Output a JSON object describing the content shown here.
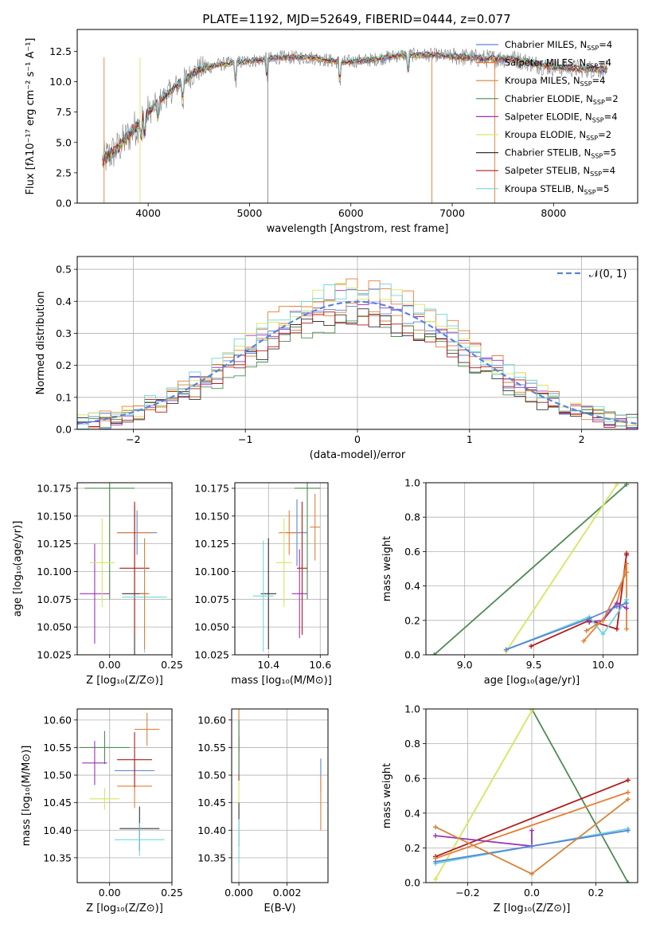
{
  "title": "PLATE=1192, MJD=52649, FIBERID=0444, z=0.077",
  "models": [
    {
      "label": "Chabrier MILES",
      "nssp": "4",
      "color": "#5b84d8"
    },
    {
      "label": "Salpeter MILES",
      "nssp": "4",
      "color": "#e67e35"
    },
    {
      "label": "Kroupa MILES",
      "nssp": "4",
      "color": "#d5833a"
    },
    {
      "label": "Chabrier ELODIE",
      "nssp": "2",
      "color": "#4e8a52"
    },
    {
      "label": "Salpeter ELODIE",
      "nssp": "4",
      "color": "#9b32b4"
    },
    {
      "label": "Kroupa ELODIE",
      "nssp": "2",
      "color": "#d4e65f"
    },
    {
      "label": "Chabrier STELIB",
      "nssp": "5",
      "color": "#333333"
    },
    {
      "label": "Salpeter STELIB",
      "nssp": "4",
      "color": "#b01c1c"
    },
    {
      "label": "Kroupa STELIB",
      "nssp": "5",
      "color": "#6fd6dc"
    }
  ],
  "chart_data": [
    {
      "id": "spectrum",
      "type": "line",
      "xlabel": "wavelength [Angstrom, rest frame]",
      "ylabel": "Flux [fλ10⁻¹⁷ erg cm⁻² s⁻¹ A⁻¹]",
      "xlim": [
        3300,
        8830
      ],
      "ylim": [
        0,
        14.3
      ],
      "xticks": [
        "4000",
        "5000",
        "6000",
        "7000",
        "8000"
      ],
      "xtick_values": [
        4000,
        5000,
        6000,
        7000,
        8000
      ],
      "yticks": [
        "0.0",
        "2.5",
        "5.0",
        "7.5",
        "10.0",
        "12.5"
      ],
      "ytick_values": [
        0,
        2.5,
        5,
        7.5,
        10,
        12.5
      ],
      "grid": false,
      "legend": "top-right",
      "data_range": [
        3550,
        8530
      ],
      "continuum": {
        "x": [
          3550,
          3700,
          3900,
          4100,
          4300,
          4500,
          4700,
          5000,
          5300,
          5600,
          5900,
          6200,
          6500,
          6800,
          7000,
          7300,
          7600,
          7900,
          8200,
          8530
        ],
        "y": [
          3.5,
          4.5,
          6.5,
          8.3,
          9.8,
          11.0,
          11.4,
          11.7,
          12.0,
          12.0,
          11.6,
          11.8,
          12.2,
          12.2,
          12.1,
          11.9,
          11.9,
          11.3,
          11.1,
          11.0
        ]
      }
    },
    {
      "id": "residuals",
      "type": "histogram",
      "xlabel": "(data-model)/error",
      "ylabel": "Normed distribution",
      "xlim": [
        -2.5,
        2.5
      ],
      "ylim": [
        0,
        0.54
      ],
      "xticks": [
        "−2",
        "−1",
        "0",
        "1",
        "2"
      ],
      "xtick_values": [
        -2,
        -1,
        0,
        1,
        2
      ],
      "yticks": [
        "0.0",
        "0.1",
        "0.2",
        "0.3",
        "0.4",
        "0.5"
      ],
      "ytick_values": [
        0,
        0.1,
        0.2,
        0.3,
        0.4,
        0.5
      ],
      "grid": true,
      "legend": "top-right",
      "reference_curve": "𝒩(0, 1)",
      "bin_width": 0.1,
      "bins_from": -2.5,
      "bins_to": 2.5
    },
    {
      "id": "age-vs-Z",
      "type": "errorbar",
      "xlabel": "Z [log₁₀(Z/Z⊙)]",
      "ylabel": "age  [log₁₀(age/yr)]",
      "xlim": [
        -0.13,
        0.25
      ],
      "ylim": [
        10.025,
        10.18
      ],
      "xticks": [
        "0.00",
        "0.25"
      ],
      "xtick_values": [
        0,
        0.25
      ],
      "yticks": [
        "10.025",
        "10.050",
        "10.075",
        "10.100",
        "10.125",
        "10.150",
        "10.175"
      ],
      "ytick_values": [
        10.025,
        10.05,
        10.075,
        10.1,
        10.125,
        10.15,
        10.175
      ],
      "points": [
        {
          "model": 0,
          "x": 0.11,
          "xerr": 0.08,
          "y": 10.135,
          "yerr": 0.02
        },
        {
          "model": 1,
          "x": 0.1,
          "xerr": 0.07,
          "y": 10.135,
          "yerr": 0.025
        },
        {
          "model": 3,
          "x": 0.0,
          "xerr": 0.1,
          "y": 10.175,
          "yerr": 0.1
        },
        {
          "model": 4,
          "x": -0.06,
          "xerr": 0.06,
          "y": 10.08,
          "yerr": 0.045
        },
        {
          "model": 5,
          "x": -0.03,
          "xerr": 0.05,
          "y": 10.108,
          "yerr": 0.04
        },
        {
          "model": 6,
          "x": 0.1,
          "xerr": 0.05,
          "y": 10.08,
          "yerr": 0.08
        },
        {
          "model": 7,
          "x": 0.1,
          "xerr": 0.06,
          "y": 10.103,
          "yerr": 0.06
        },
        {
          "model": 8,
          "x": 0.14,
          "xerr": 0.09,
          "y": 10.077,
          "yerr": 0.05
        },
        {
          "model": 2,
          "x": 0.14,
          "xerr": 0.02,
          "y": 10.08,
          "yerr": 0.05
        }
      ]
    },
    {
      "id": "age-vs-mass",
      "type": "errorbar",
      "xlabel": "mass [log₁₀(M/M⊙)]",
      "ylabel": "",
      "xlim": [
        10.27,
        10.63
      ],
      "ylim": [
        10.025,
        10.18
      ],
      "xticks": [
        "10.4",
        "10.6"
      ],
      "xtick_values": [
        10.4,
        10.6
      ],
      "yticks": [
        "10.025",
        "10.050",
        "10.075",
        "10.100",
        "10.125",
        "10.150",
        "10.175"
      ],
      "ytick_values": [
        10.025,
        10.05,
        10.075,
        10.1,
        10.125,
        10.15,
        10.175
      ],
      "points": [
        {
          "model": 0,
          "x": 10.51,
          "xerr": 0.04,
          "y": 10.135,
          "yerr": 0.03
        },
        {
          "model": 1,
          "x": 10.48,
          "xerr": 0.04,
          "y": 10.135,
          "yerr": 0.02
        },
        {
          "model": 3,
          "x": 10.55,
          "xerr": 0.05,
          "y": 10.175,
          "yerr": 0.1
        },
        {
          "model": 4,
          "x": 10.52,
          "xerr": 0.03,
          "y": 10.08,
          "yerr": 0.04
        },
        {
          "model": 5,
          "x": 10.46,
          "xerr": 0.03,
          "y": 10.108,
          "yerr": 0.04
        },
        {
          "model": 6,
          "x": 10.4,
          "xerr": 0.03,
          "y": 10.08,
          "yerr": 0.05
        },
        {
          "model": 7,
          "x": 10.53,
          "xerr": 0.02,
          "y": 10.103,
          "yerr": 0.06
        },
        {
          "model": 8,
          "x": 10.38,
          "xerr": 0.04,
          "y": 10.078,
          "yerr": 0.05
        },
        {
          "model": 2,
          "x": 10.58,
          "xerr": 0.02,
          "y": 10.14,
          "yerr": 0.03
        }
      ]
    },
    {
      "id": "weight-vs-age",
      "type": "line",
      "xlabel": "age  [log₁₀(age/yr)]",
      "ylabel": "mass weight",
      "xlim": [
        8.72,
        10.25
      ],
      "ylim": [
        0,
        1.0
      ],
      "xticks": [
        "9.0",
        "9.5",
        "10.0"
      ],
      "xtick_values": [
        9.0,
        9.5,
        10.0
      ],
      "yticks": [
        "0.0",
        "0.2",
        "0.4",
        "0.6",
        "0.8",
        "1.0"
      ],
      "ytick_values": [
        0,
        0.2,
        0.4,
        0.6,
        0.8,
        1.0
      ],
      "grid": true,
      "series": [
        {
          "model": 3,
          "x": [
            8.78,
            10.17
          ],
          "y": [
            0.0,
            0.99
          ]
        },
        {
          "model": 5,
          "x": [
            9.3,
            10.1
          ],
          "y": [
            0.02,
            0.99
          ]
        },
        {
          "model": 7,
          "x": [
            9.48,
            9.9,
            10.1,
            10.17,
            10.17
          ],
          "y": [
            0.05,
            0.2,
            0.15,
            0.59,
            0.58
          ]
        },
        {
          "model": 1,
          "x": [
            9.86,
            10.1,
            10.17,
            10.17
          ],
          "y": [
            0.08,
            0.3,
            0.53,
            0.15
          ]
        },
        {
          "model": 4,
          "x": [
            9.9,
            10.0,
            10.1,
            10.17
          ],
          "y": [
            0.19,
            0.2,
            0.3,
            0.27
          ]
        },
        {
          "model": 8,
          "x": [
            9.3,
            9.9,
            10.0,
            10.17
          ],
          "y": [
            0.03,
            0.22,
            0.12,
            0.32
          ]
        },
        {
          "model": 0,
          "x": [
            9.3,
            9.9,
            10.1,
            10.17
          ],
          "y": [
            0.03,
            0.21,
            0.28,
            0.3
          ]
        },
        {
          "model": 2,
          "x": [
            9.88,
            10.0,
            10.17
          ],
          "y": [
            0.14,
            0.2,
            0.48
          ]
        }
      ]
    },
    {
      "id": "mass-vs-Z",
      "type": "errorbar",
      "xlabel": "Z [log₁₀(Z/Z⊙)]",
      "ylabel": "mass [log₁₀(M/M⊙)]",
      "xlim": [
        -0.13,
        0.25
      ],
      "ylim": [
        10.305,
        10.62
      ],
      "xticks": [
        "0.00",
        "0.25"
      ],
      "xtick_values": [
        0,
        0.25
      ],
      "yticks": [
        "10.35",
        "10.40",
        "10.45",
        "10.50",
        "10.55",
        "10.60"
      ],
      "ytick_values": [
        10.35,
        10.4,
        10.45,
        10.5,
        10.55,
        10.6
      ],
      "points": [
        {
          "model": 0,
          "x": 0.1,
          "xerr": 0.08,
          "y": 10.508,
          "yerr": 0.04
        },
        {
          "model": 1,
          "x": 0.1,
          "xerr": 0.07,
          "y": 10.48,
          "yerr": 0.04
        },
        {
          "model": 3,
          "x": -0.02,
          "xerr": 0.1,
          "y": 10.55,
          "yerr": 0.03
        },
        {
          "model": 4,
          "x": -0.06,
          "xerr": 0.05,
          "y": 10.522,
          "yerr": 0.04
        },
        {
          "model": 5,
          "x": -0.02,
          "xerr": 0.06,
          "y": 10.457,
          "yerr": 0.02
        },
        {
          "model": 6,
          "x": 0.12,
          "xerr": 0.08,
          "y": 10.403,
          "yerr": 0.04
        },
        {
          "model": 7,
          "x": 0.1,
          "xerr": 0.07,
          "y": 10.528,
          "yerr": 0.05
        },
        {
          "model": 8,
          "x": 0.12,
          "xerr": 0.1,
          "y": 10.383,
          "yerr": 0.03
        },
        {
          "model": 2,
          "x": 0.15,
          "xerr": 0.05,
          "y": 10.583,
          "yerr": 0.03
        }
      ]
    },
    {
      "id": "mass-vs-ebv",
      "type": "errorbar",
      "xlabel": "E(B-V)",
      "ylabel": "",
      "xlim": [
        -0.0003,
        0.0037
      ],
      "ylim": [
        10.305,
        10.62
      ],
      "xticks": [
        "0.000",
        "0.002"
      ],
      "xtick_values": [
        0,
        0.002
      ],
      "yticks": [
        "10.35",
        "10.40",
        "10.45",
        "10.50",
        "10.55",
        "10.60"
      ],
      "ytick_values": [
        10.35,
        10.4,
        10.45,
        10.5,
        10.55,
        10.6
      ],
      "points": [
        {
          "model": 2,
          "x": 0.0,
          "xerr": 0.0,
          "y": 10.58,
          "yerr": 0.04
        },
        {
          "model": 7,
          "x": 0.0,
          "xerr": 0.0,
          "y": 10.53,
          "yerr": 0.04
        },
        {
          "model": 3,
          "x": 0.0,
          "xerr": 0.0,
          "y": 10.55,
          "yerr": 0.05
        },
        {
          "model": 5,
          "x": 0.0,
          "xerr": 0.0,
          "y": 10.46,
          "yerr": 0.03
        },
        {
          "model": 6,
          "x": 0.0,
          "xerr": 0.0,
          "y": 10.41,
          "yerr": 0.04
        },
        {
          "model": 8,
          "x": 0.0,
          "xerr": 0.0,
          "y": 10.38,
          "yerr": 0.04
        },
        {
          "model": 0,
          "x": 0.0034,
          "xerr": 0.0,
          "y": 10.5,
          "yerr": 0.03
        },
        {
          "model": 1,
          "x": 0.0034,
          "xerr": 0.0,
          "y": 10.45,
          "yerr": 0.05
        }
      ]
    },
    {
      "id": "weight-vs-Z",
      "type": "line",
      "xlabel": "Z [log₁₀(Z/Z⊙)]",
      "ylabel": "mass weight",
      "xlim": [
        -0.33,
        0.33
      ],
      "ylim": [
        0,
        1.0
      ],
      "xticks": [
        "−0.2",
        "0.0",
        "0.2"
      ],
      "xtick_values": [
        -0.2,
        0,
        0.2
      ],
      "yticks": [
        "0.0",
        "0.2",
        "0.4",
        "0.6",
        "0.8",
        "1.0"
      ],
      "ytick_values": [
        0,
        0.2,
        0.4,
        0.6,
        0.8,
        1.0
      ],
      "grid": true,
      "series": [
        {
          "model": 3,
          "x": [
            0.0,
            0.3
          ],
          "y": [
            1.0,
            0.0
          ]
        },
        {
          "model": 5,
          "x": [
            -0.3,
            0.0
          ],
          "y": [
            0.02,
            0.99
          ]
        },
        {
          "model": 7,
          "x": [
            -0.3,
            0.3
          ],
          "y": [
            0.15,
            0.59
          ]
        },
        {
          "model": 1,
          "x": [
            -0.3,
            0.3
          ],
          "y": [
            0.14,
            0.52
          ]
        },
        {
          "model": 4,
          "x": [
            -0.3,
            0.0,
            0.0
          ],
          "y": [
            0.27,
            0.21,
            0.3
          ]
        },
        {
          "model": 8,
          "x": [
            -0.3,
            0.0,
            0.3
          ],
          "y": [
            0.11,
            0.21,
            0.31
          ]
        },
        {
          "model": 0,
          "x": [
            -0.3,
            0.0,
            0.3
          ],
          "y": [
            0.12,
            0.21,
            0.3
          ]
        },
        {
          "model": 2,
          "x": [
            -0.3,
            0.0,
            0.3
          ],
          "y": [
            0.32,
            0.05,
            0.48
          ]
        }
      ]
    }
  ]
}
